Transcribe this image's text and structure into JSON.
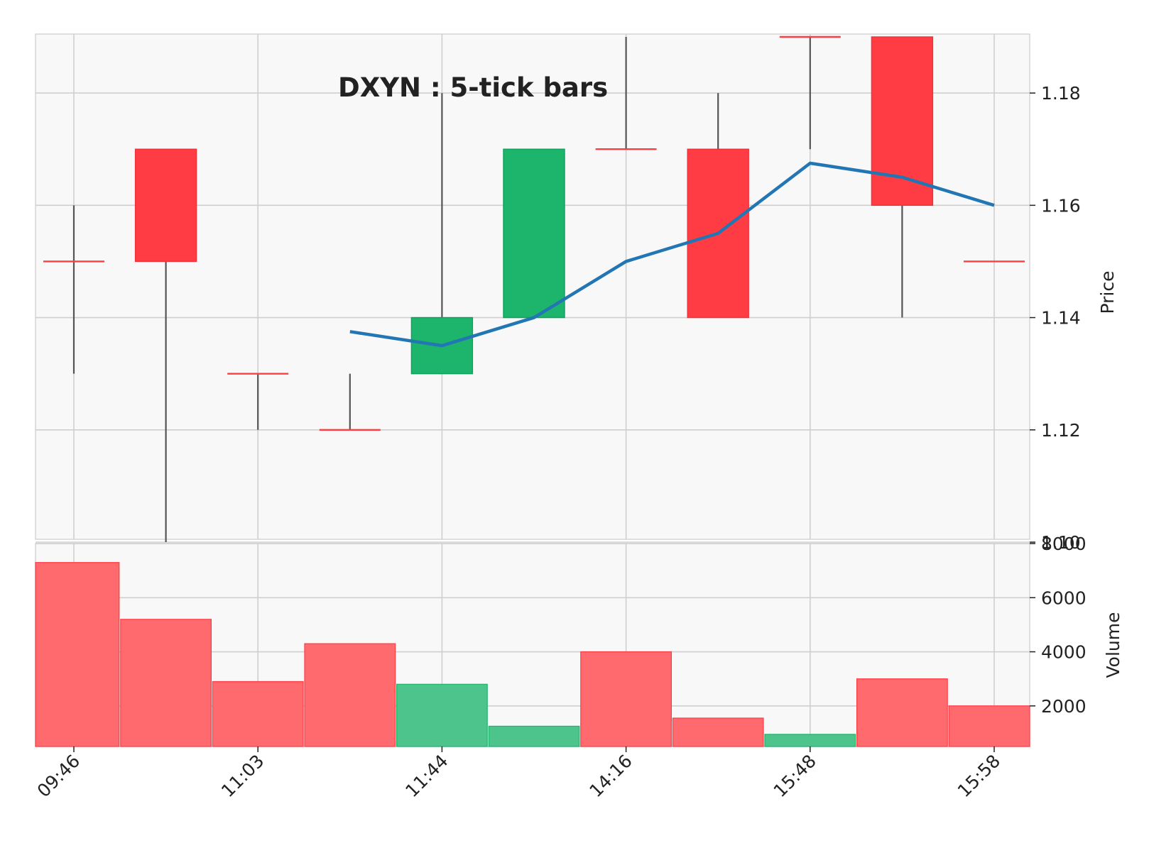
{
  "chart_data": {
    "type": "candlestick",
    "title": "DXYN : 5-tick bars",
    "price_ylabel": "Price",
    "volume_ylabel": "Volume",
    "price_ylim": [
      1.1,
      1.19
    ],
    "volume_ylim": [
      500,
      8000
    ],
    "price_ticks": [
      "1.10",
      "1.12",
      "1.14",
      "1.16",
      "1.18"
    ],
    "volume_ticks": [
      "2000",
      "4000",
      "6000",
      "8000"
    ],
    "x_tick_labels": [
      "09:46",
      "11:03",
      "11:44",
      "14:16",
      "15:48",
      "15:58"
    ],
    "x_tick_indices": [
      0,
      2,
      4,
      6,
      8,
      10
    ],
    "grid": true,
    "up_color": "#1db56b",
    "down_color": "#ff3c44",
    "ma_color": "#2276b4",
    "bars": [
      {
        "open": 1.15,
        "high": 1.16,
        "low": 1.13,
        "close": 1.15,
        "volume": 7300
      },
      {
        "open": 1.17,
        "high": 1.17,
        "low": 1.1,
        "close": 1.15,
        "volume": 5200
      },
      {
        "open": 1.13,
        "high": 1.13,
        "low": 1.12,
        "close": 1.13,
        "volume": 2900
      },
      {
        "open": 1.12,
        "high": 1.13,
        "low": 1.12,
        "close": 1.12,
        "volume": 4300
      },
      {
        "open": 1.13,
        "high": 1.18,
        "low": 1.13,
        "close": 1.14,
        "volume": 2800
      },
      {
        "open": 1.14,
        "high": 1.17,
        "low": 1.14,
        "close": 1.17,
        "volume": 1250
      },
      {
        "open": 1.17,
        "high": 1.19,
        "low": 1.17,
        "close": 1.17,
        "volume": 4000
      },
      {
        "open": 1.17,
        "high": 1.18,
        "low": 1.14,
        "close": 1.14,
        "volume": 1550
      },
      {
        "open": 1.19,
        "high": 1.19,
        "low": 1.17,
        "close": 1.19,
        "volume": 950
      },
      {
        "open": 1.19,
        "high": 1.19,
        "low": 1.14,
        "close": 1.16,
        "volume": 3000
      },
      {
        "open": 1.15,
        "high": 1.15,
        "low": 1.15,
        "close": 1.15,
        "volume": 2000
      }
    ],
    "volume_colors": [
      "down",
      "down",
      "down",
      "down",
      "up",
      "up",
      "down",
      "down",
      "up",
      "down",
      "down"
    ],
    "moving_average": [
      null,
      null,
      null,
      1.1375,
      1.135,
      1.14,
      1.15,
      1.155,
      1.1675,
      1.165,
      1.16
    ]
  }
}
